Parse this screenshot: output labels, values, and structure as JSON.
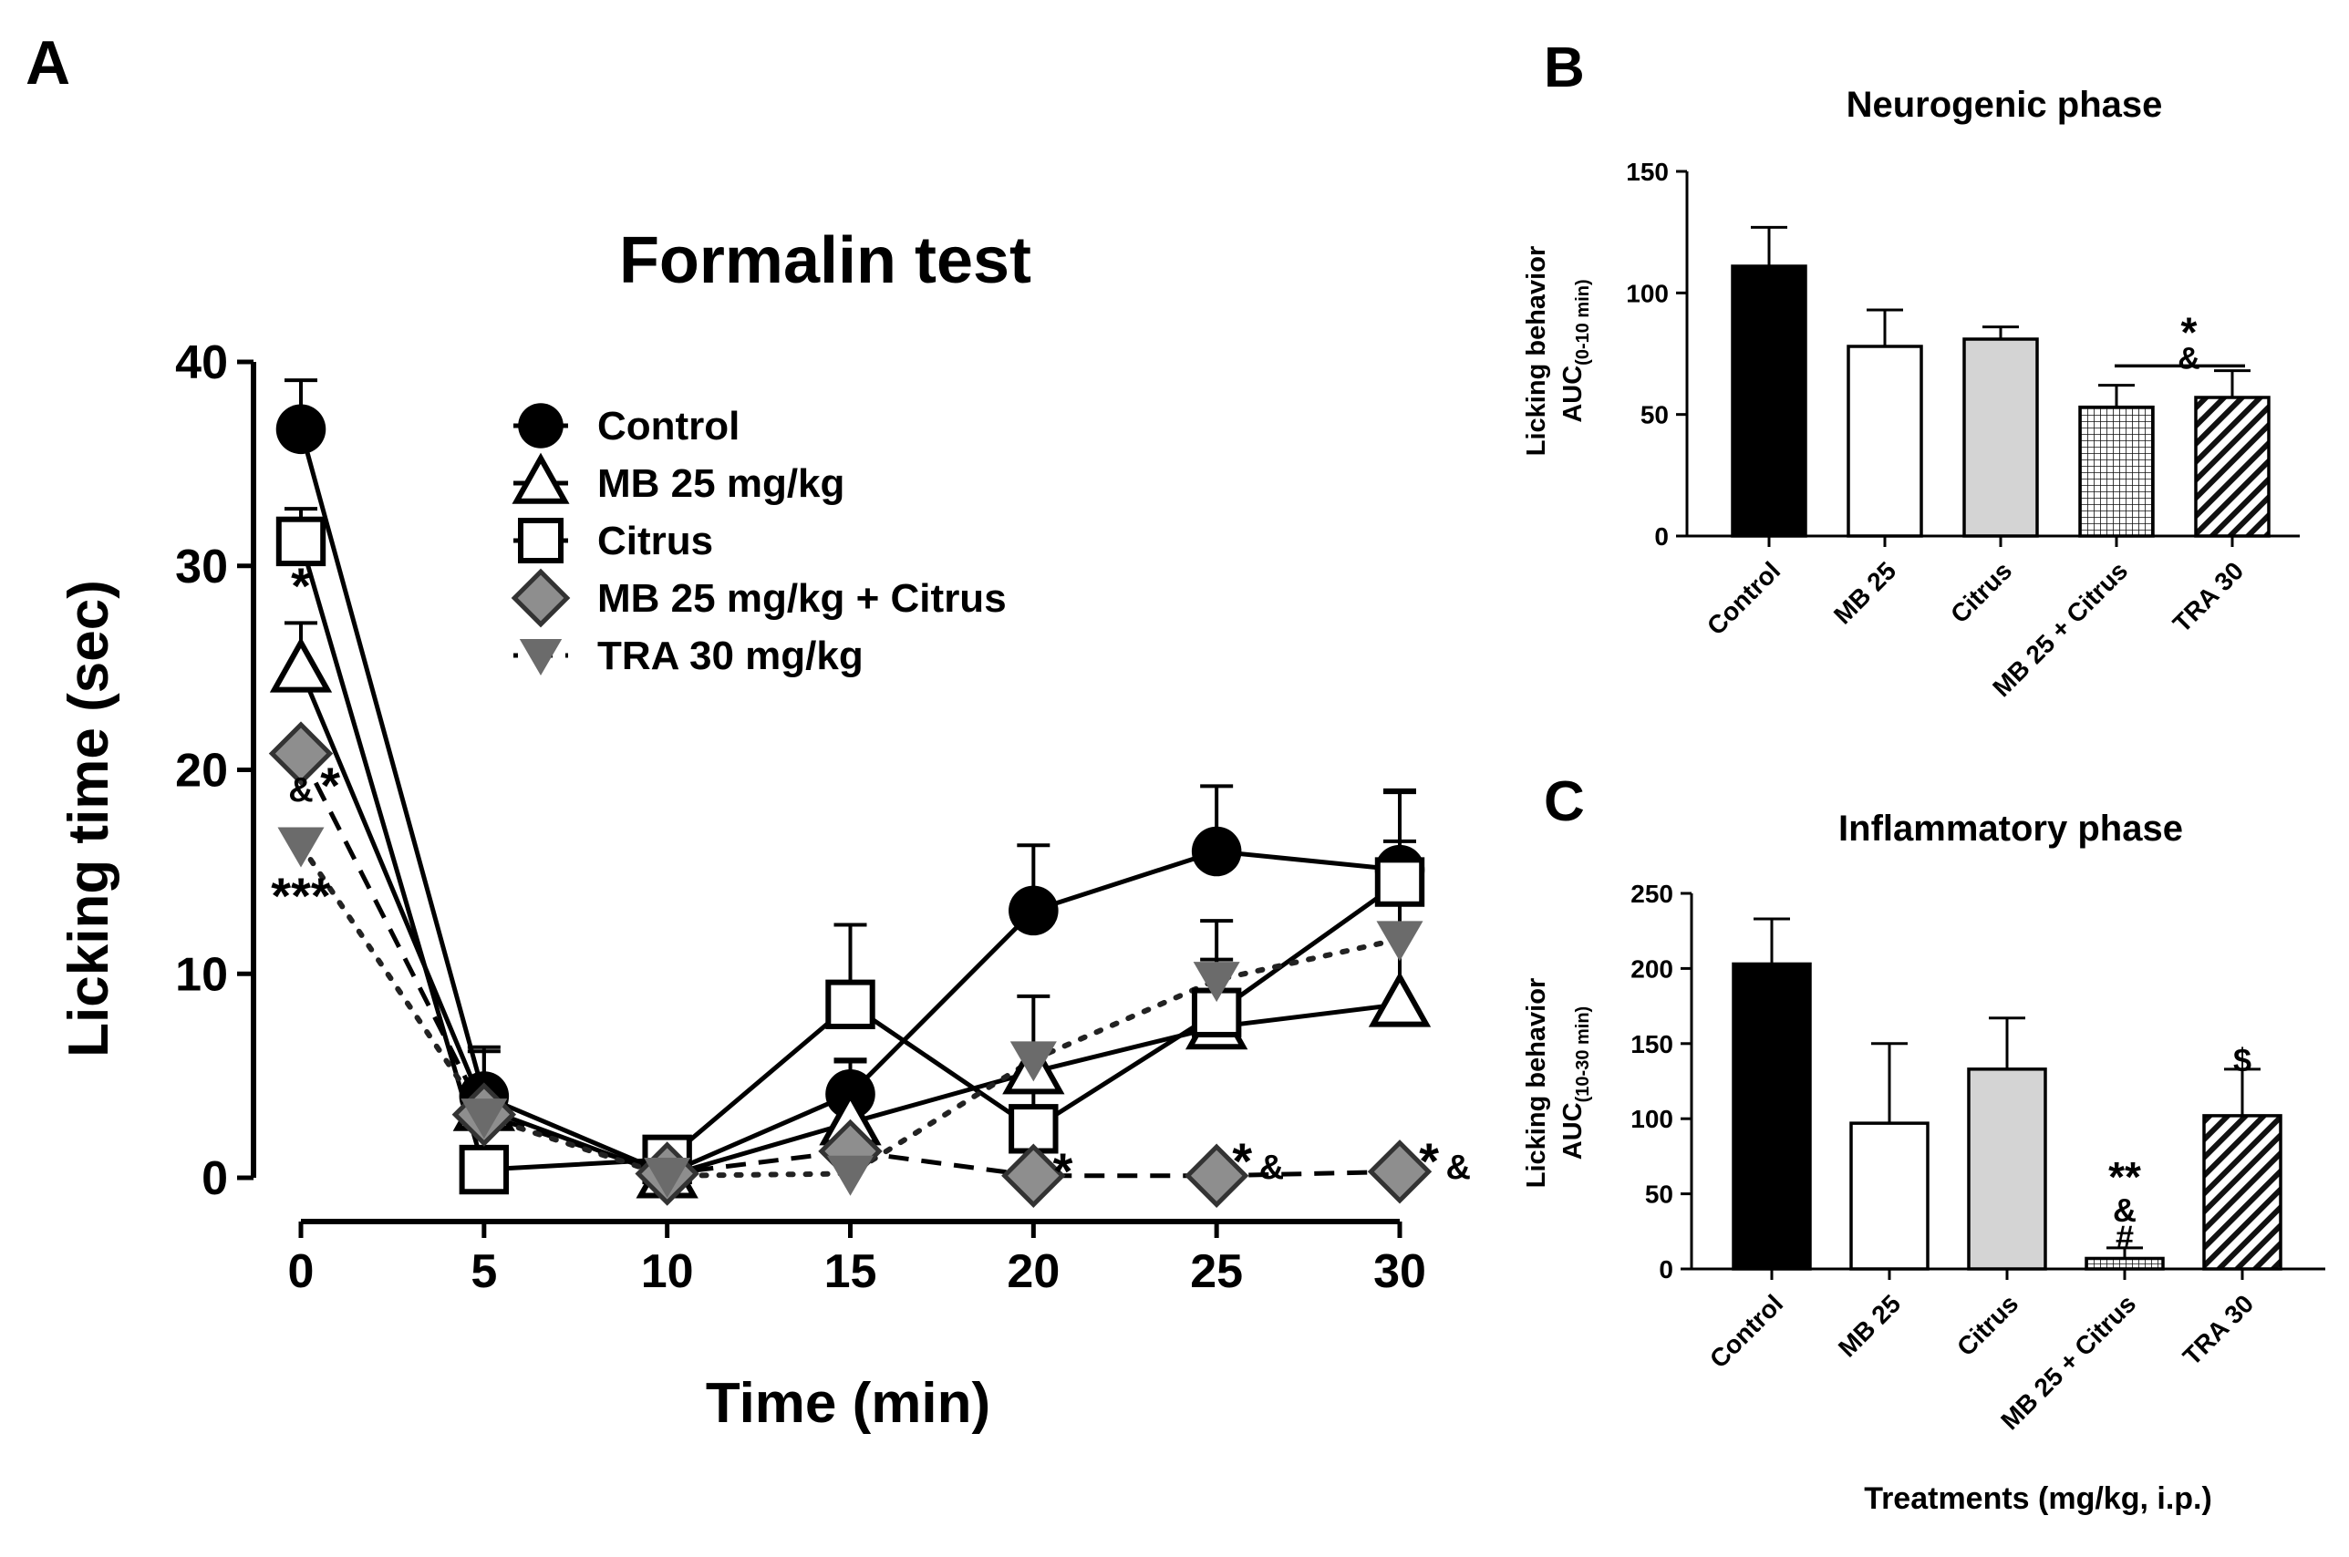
{
  "chart_data": [
    {
      "panel_label": "A",
      "type": "line",
      "title": "Formalin test",
      "xlabel": "Time (min)",
      "ylabel": "Licking time (sec)",
      "x": [
        0,
        5,
        10,
        15,
        20,
        25,
        30
      ],
      "xlim": [
        0,
        30
      ],
      "ylim": [
        0,
        40
      ],
      "xticks": [
        "0",
        "5",
        "10",
        "15",
        "20",
        "25",
        "30"
      ],
      "yticks": [
        "0",
        "10",
        "20",
        "30",
        "40"
      ],
      "legend_position": "top-center",
      "series": [
        {
          "name": "Control",
          "marker": "circle",
          "line": "solid",
          "values": [
            36.7,
            4.0,
            0.2,
            4.1,
            13.1,
            16.0,
            15.1
          ],
          "errors": [
            2.4,
            2.2,
            0.2,
            1.6,
            3.2,
            3.2,
            3.9
          ]
        },
        {
          "name": "MB 25 mg/kg",
          "marker": "triangle-up",
          "line": "solid",
          "values": [
            24.9,
            3.4,
            0.1,
            2.7,
            5.2,
            7.4,
            8.5
          ],
          "errors": [
            2.3,
            3.0,
            0.1,
            3.1,
            3.7,
            5.2,
            10.4
          ]
        },
        {
          "name": "Citrus",
          "marker": "square",
          "line": "solid",
          "values": [
            31.2,
            0.4,
            0.9,
            8.5,
            2.4,
            8.1,
            14.5
          ],
          "errors": [
            1.6,
            1.1,
            0.2,
            3.9,
            2.0,
            2.6,
            2.0
          ]
        },
        {
          "name": "MB 25 mg/kg + Citrus",
          "marker": "diamond",
          "line": "dashed",
          "values": [
            20.8,
            3.1,
            0.2,
            1.3,
            0.1,
            0.1,
            0.3
          ],
          "errors": [
            0,
            0,
            0,
            0,
            0,
            0,
            0
          ]
        },
        {
          "name": "TRA 30 mg/kg",
          "marker": "triangle-down",
          "line": "dotted",
          "values": [
            16.3,
            3.0,
            0.1,
            0.2,
            5.8,
            9.7,
            11.7
          ],
          "errors": [
            0,
            0,
            0,
            0,
            0,
            0,
            0
          ]
        }
      ],
      "annotations": [
        {
          "text": "*",
          "x": 0,
          "y": 28.7
        },
        {
          "text": "&",
          "x": 0,
          "y": 19.0,
          "small": true
        },
        {
          "text": "*",
          "x": 0.8,
          "y": 18.9
        },
        {
          "text": "***",
          "x": 0,
          "y": 13.5
        },
        {
          "text": "*",
          "x": 20.8,
          "y": 0.0
        },
        {
          "text": "*",
          "x": 25.7,
          "y": 0.5
        },
        {
          "text": "&",
          "x": 26.5,
          "y": 0.5,
          "small": true
        },
        {
          "text": "*",
          "x": 30.8,
          "y": 0.5
        },
        {
          "text": "&",
          "x": 31.6,
          "y": 0.5,
          "small": true
        }
      ]
    },
    {
      "panel_label": "B",
      "type": "bar",
      "title": "Neurogenic phase",
      "ylabel": "Licking behavior",
      "ylabel2_main": "AUC",
      "ylabel2_sub": "(0-10 min)",
      "categories": [
        "Control",
        "MB 25",
        "Citrus",
        "MB 25 + Citrus",
        "TRA 30"
      ],
      "values": [
        111,
        78,
        81,
        53,
        57
      ],
      "errors": [
        16,
        15,
        5,
        9,
        11
      ],
      "fills": [
        "solid-black",
        "white",
        "light-gray",
        "crosshatch",
        "diagonal-hatch"
      ],
      "ylim": [
        0,
        150
      ],
      "yticks": [
        "0",
        "50",
        "100",
        "150"
      ],
      "annotations": [
        {
          "text": "*",
          "y": 83
        },
        {
          "text": "&",
          "y": 74
        }
      ]
    },
    {
      "panel_label": "C",
      "type": "bar",
      "title": "Inflammatory phase",
      "xlabel": "Treatments (mg/kg, i.p.)",
      "ylabel": "Licking behavior",
      "ylabel2_main": "AUC",
      "ylabel2_sub": "(10-30 min)",
      "categories": [
        "Control",
        "MB 25",
        "Citrus",
        "MB 25 + Citrus",
        "TRA 30"
      ],
      "values": [
        203,
        97,
        133,
        7,
        102
      ],
      "errors": [
        30,
        53,
        34,
        7,
        31
      ],
      "fills": [
        "solid-black",
        "white",
        "light-gray",
        "crosshatch",
        "diagonal-hatch"
      ],
      "ylim": [
        0,
        250
      ],
      "yticks": [
        "0",
        "50",
        "100",
        "150",
        "200",
        "250"
      ],
      "annotations": [
        {
          "category": 3,
          "text": "**",
          "y": 60
        },
        {
          "category": 3,
          "text": "&",
          "y": 40
        },
        {
          "category": 3,
          "text": "#",
          "y": 22
        },
        {
          "category": 4,
          "text": "$",
          "y": 140
        }
      ]
    }
  ]
}
